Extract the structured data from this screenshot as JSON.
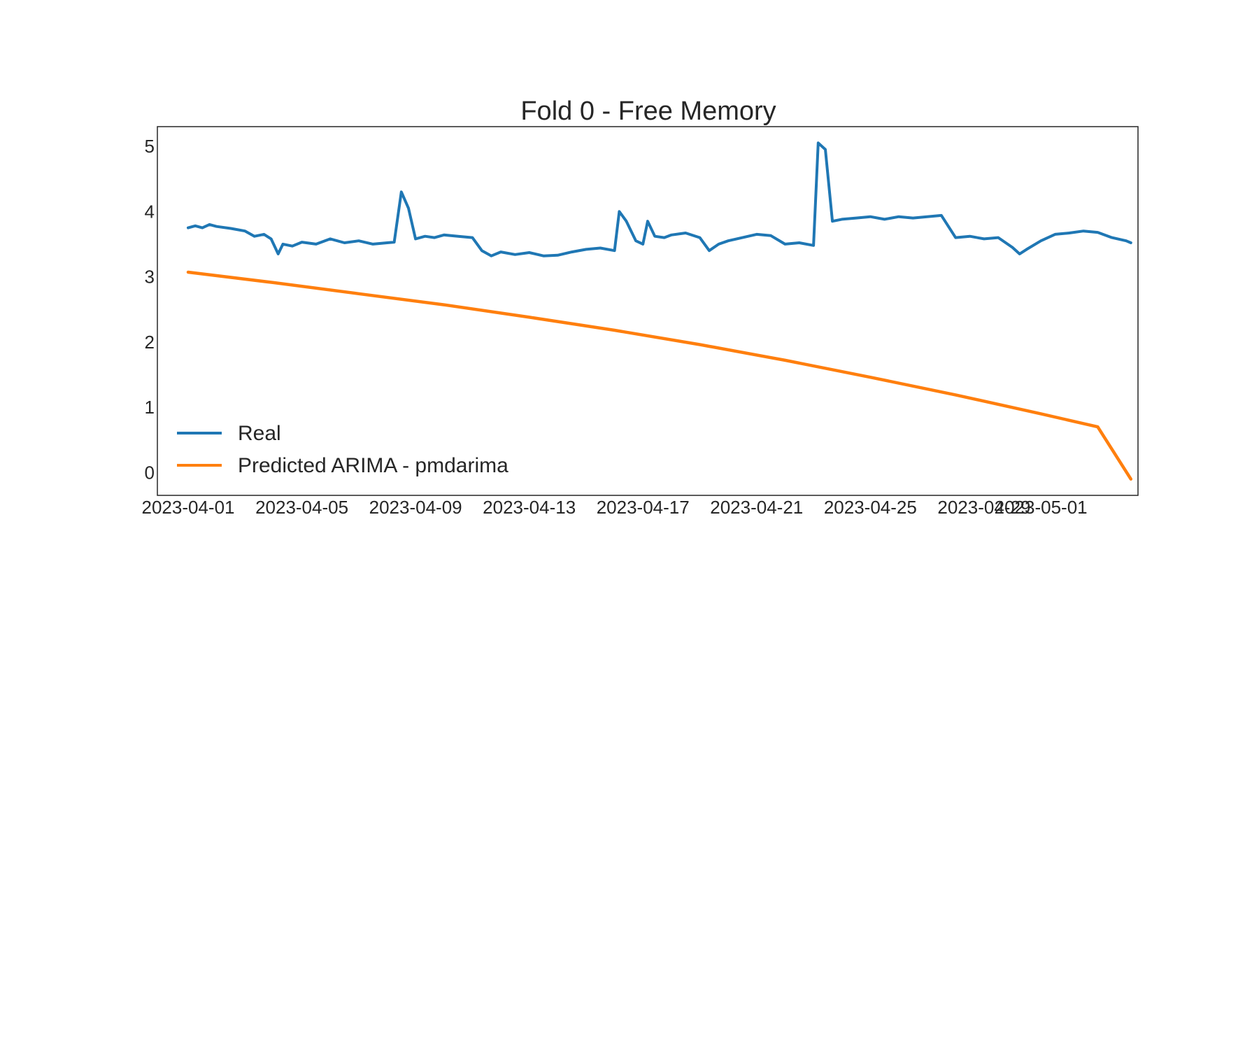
{
  "chart_data": {
    "type": "line",
    "title": "Fold 0 - Free Memory",
    "xlabel": "",
    "ylabel": "",
    "x_range": [
      "2023-03-30T22:00",
      "2023-05-04T10:00"
    ],
    "ylim": [
      -0.35,
      5.3
    ],
    "yticks": [
      0,
      1,
      2,
      3,
      4,
      5
    ],
    "xticks": [
      "2023-04-01",
      "2023-04-05",
      "2023-04-09",
      "2023-04-13",
      "2023-04-17",
      "2023-04-21",
      "2023-04-25",
      "2023-04-29",
      "2023-05-01"
    ],
    "grid": false,
    "legend_position": "lower-left",
    "series": [
      {
        "name": "Real",
        "color": "#1f77b4",
        "points": [
          [
            "2023-04-01T00:00",
            3.75
          ],
          [
            "2023-04-01T06:00",
            3.78
          ],
          [
            "2023-04-01T12:00",
            3.75
          ],
          [
            "2023-04-01T18:00",
            3.8
          ],
          [
            "2023-04-02T00:00",
            3.77
          ],
          [
            "2023-04-02T12:00",
            3.74
          ],
          [
            "2023-04-03T00:00",
            3.7
          ],
          [
            "2023-04-03T08:00",
            3.62
          ],
          [
            "2023-04-03T16:00",
            3.65
          ],
          [
            "2023-04-03T22:00",
            3.58
          ],
          [
            "2023-04-04T04:00",
            3.35
          ],
          [
            "2023-04-04T08:00",
            3.5
          ],
          [
            "2023-04-04T16:00",
            3.47
          ],
          [
            "2023-04-05T00:00",
            3.53
          ],
          [
            "2023-04-05T12:00",
            3.5
          ],
          [
            "2023-04-06T00:00",
            3.58
          ],
          [
            "2023-04-06T12:00",
            3.52
          ],
          [
            "2023-04-07T00:00",
            3.55
          ],
          [
            "2023-04-07T12:00",
            3.5
          ],
          [
            "2023-04-08T00:00",
            3.52
          ],
          [
            "2023-04-08T06:00",
            3.53
          ],
          [
            "2023-04-08T12:00",
            4.3
          ],
          [
            "2023-04-08T18:00",
            4.05
          ],
          [
            "2023-04-09T00:00",
            3.58
          ],
          [
            "2023-04-09T08:00",
            3.62
          ],
          [
            "2023-04-09T16:00",
            3.6
          ],
          [
            "2023-04-10T00:00",
            3.64
          ],
          [
            "2023-04-10T12:00",
            3.62
          ],
          [
            "2023-04-11T00:00",
            3.6
          ],
          [
            "2023-04-11T08:00",
            3.4
          ],
          [
            "2023-04-11T16:00",
            3.32
          ],
          [
            "2023-04-12T00:00",
            3.38
          ],
          [
            "2023-04-12T12:00",
            3.34
          ],
          [
            "2023-04-13T00:00",
            3.37
          ],
          [
            "2023-04-13T12:00",
            3.32
          ],
          [
            "2023-04-14T00:00",
            3.33
          ],
          [
            "2023-04-14T12:00",
            3.38
          ],
          [
            "2023-04-15T00:00",
            3.42
          ],
          [
            "2023-04-15T12:00",
            3.44
          ],
          [
            "2023-04-16T00:00",
            3.4
          ],
          [
            "2023-04-16T04:00",
            4.0
          ],
          [
            "2023-04-16T10:00",
            3.85
          ],
          [
            "2023-04-16T18:00",
            3.55
          ],
          [
            "2023-04-17T00:00",
            3.5
          ],
          [
            "2023-04-17T04:00",
            3.85
          ],
          [
            "2023-04-17T10:00",
            3.62
          ],
          [
            "2023-04-17T18:00",
            3.6
          ],
          [
            "2023-04-18T00:00",
            3.64
          ],
          [
            "2023-04-18T12:00",
            3.67
          ],
          [
            "2023-04-19T00:00",
            3.6
          ],
          [
            "2023-04-19T08:00",
            3.4
          ],
          [
            "2023-04-19T16:00",
            3.5
          ],
          [
            "2023-04-20T00:00",
            3.55
          ],
          [
            "2023-04-20T12:00",
            3.6
          ],
          [
            "2023-04-21T00:00",
            3.65
          ],
          [
            "2023-04-21T12:00",
            3.63
          ],
          [
            "2023-04-22T00:00",
            3.5
          ],
          [
            "2023-04-22T12:00",
            3.52
          ],
          [
            "2023-04-23T00:00",
            3.48
          ],
          [
            "2023-04-23T04:00",
            5.05
          ],
          [
            "2023-04-23T10:00",
            4.95
          ],
          [
            "2023-04-23T16:00",
            3.85
          ],
          [
            "2023-04-24T00:00",
            3.88
          ],
          [
            "2023-04-24T12:00",
            3.9
          ],
          [
            "2023-04-25T00:00",
            3.92
          ],
          [
            "2023-04-25T12:00",
            3.88
          ],
          [
            "2023-04-26T00:00",
            3.92
          ],
          [
            "2023-04-26T12:00",
            3.9
          ],
          [
            "2023-04-27T00:00",
            3.92
          ],
          [
            "2023-04-27T12:00",
            3.94
          ],
          [
            "2023-04-28T00:00",
            3.6
          ],
          [
            "2023-04-28T12:00",
            3.62
          ],
          [
            "2023-04-29T00:00",
            3.58
          ],
          [
            "2023-04-29T12:00",
            3.6
          ],
          [
            "2023-04-30T00:00",
            3.45
          ],
          [
            "2023-04-30T06:00",
            3.35
          ],
          [
            "2023-04-30T12:00",
            3.42
          ],
          [
            "2023-05-01T00:00",
            3.55
          ],
          [
            "2023-05-01T12:00",
            3.65
          ],
          [
            "2023-05-02T00:00",
            3.67
          ],
          [
            "2023-05-02T12:00",
            3.7
          ],
          [
            "2023-05-03T00:00",
            3.68
          ],
          [
            "2023-05-03T12:00",
            3.6
          ],
          [
            "2023-05-04T00:00",
            3.55
          ],
          [
            "2023-05-04T04:00",
            3.52
          ]
        ]
      },
      {
        "name": "Predicted ARIMA - pmdarima",
        "color": "#ff7f0e",
        "points": [
          [
            "2023-04-01T00:00",
            3.07
          ],
          [
            "2023-04-04T00:00",
            2.91
          ],
          [
            "2023-04-07T00:00",
            2.74
          ],
          [
            "2023-04-10T00:00",
            2.57
          ],
          [
            "2023-04-13T00:00",
            2.38
          ],
          [
            "2023-04-16T00:00",
            2.18
          ],
          [
            "2023-04-19T00:00",
            1.96
          ],
          [
            "2023-04-22T00:00",
            1.72
          ],
          [
            "2023-04-25T00:00",
            1.46
          ],
          [
            "2023-04-28T00:00",
            1.19
          ],
          [
            "2023-05-01T00:00",
            0.9
          ],
          [
            "2023-05-03T00:00",
            0.7
          ],
          [
            "2023-05-04T04:00",
            -0.1
          ]
        ]
      }
    ]
  }
}
